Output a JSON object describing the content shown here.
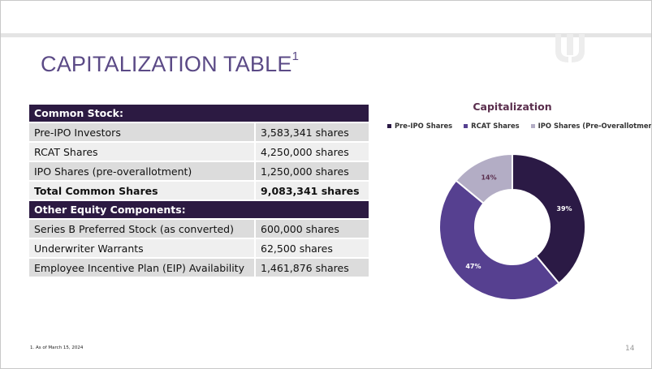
{
  "slide": {
    "title": "CAPITALIZATION TABLE",
    "title_superscript": "1",
    "footnote": "1. As of March 15, 2024",
    "page_number": "14"
  },
  "table": {
    "rows": [
      {
        "type": "section",
        "label": "Common Stock:",
        "value": ""
      },
      {
        "type": "row",
        "label": "Pre-IPO Investors",
        "value": "3,583,341 shares"
      },
      {
        "type": "row",
        "label": "RCAT Shares",
        "value": "4,250,000 shares"
      },
      {
        "type": "row",
        "label": "IPO Shares (pre-overallotment)",
        "value": "1,250,000 shares"
      },
      {
        "type": "total",
        "label": "Total Common Shares",
        "value": "9,083,341 shares"
      },
      {
        "type": "section",
        "label": "Other Equity Components:",
        "value": ""
      },
      {
        "type": "row",
        "label": "Series B Preferred Stock (as converted)",
        "value": "600,000 shares"
      },
      {
        "type": "row",
        "label": "Underwriter Warrants",
        "value": "62,500 shares"
      },
      {
        "type": "row",
        "label": "Employee Incentive Plan (EIP) Availability",
        "value": "1,461,876 shares"
      }
    ]
  },
  "chart_data": {
    "type": "pie",
    "variant": "donut",
    "title": "Capitalization",
    "legend_position": "top",
    "categories": [
      "Pre-IPO Shares",
      "RCAT Shares",
      "IPO Shares (Pre-Overallotment)"
    ],
    "values": [
      39,
      47,
      14
    ],
    "labels": [
      "39%",
      "47%",
      "14%"
    ],
    "colors": [
      "#2b1a45",
      "#564090",
      "#b3adc5"
    ],
    "label_colors": [
      "#ffffff",
      "#ffffff",
      "#5a2e4d"
    ]
  }
}
